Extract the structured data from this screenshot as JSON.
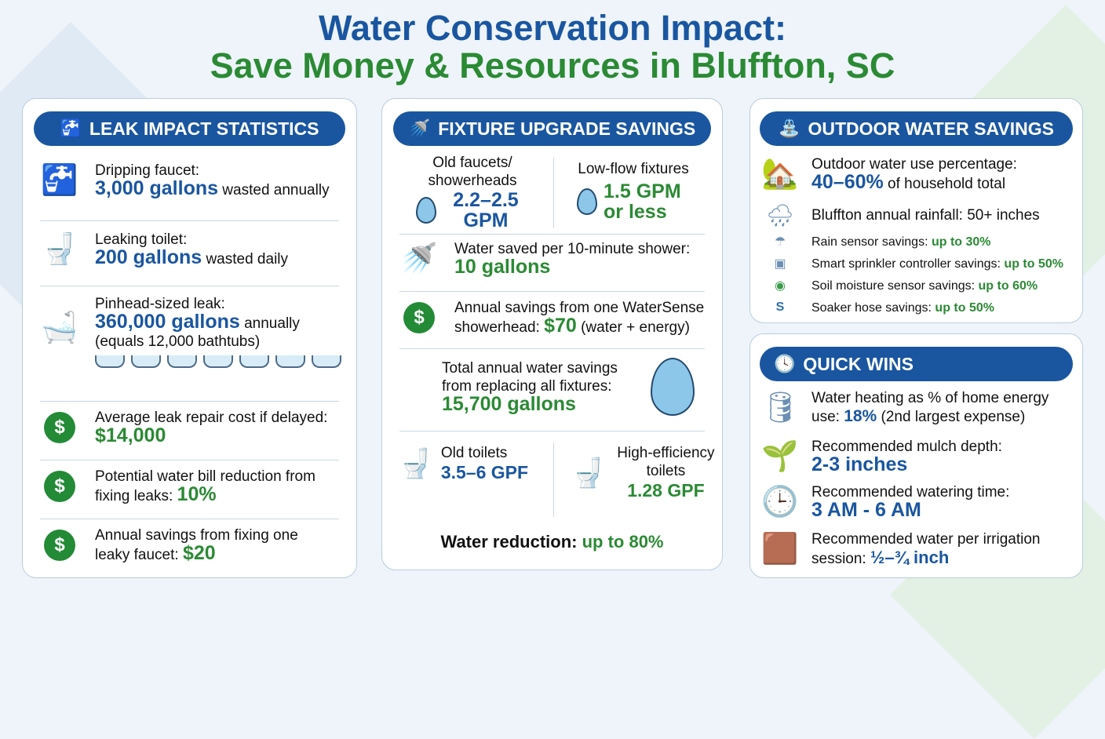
{
  "title": {
    "line1": "Water Conservation Impact:",
    "line2": "Save Money & Resources in Bluffton, SC"
  },
  "colors": {
    "blue": "#1a56a0",
    "green": "#2b8a34"
  },
  "leak": {
    "header": "LEAK IMPACT STATISTICS",
    "icon": "faucet-icon",
    "items": [
      {
        "label": "Dripping faucet:",
        "value": "3,000 gallons",
        "suffix": " wasted annually",
        "icon": "faucet-icon"
      },
      {
        "label": "Leaking toilet:",
        "value": "200 gallons",
        "suffix": " wasted daily",
        "icon": "toilet-icon"
      },
      {
        "label": "Pinhead-sized leak:",
        "value": "360,000 gallons",
        "suffix": " annually",
        "note": "(equals 12,000 bathtubs)",
        "icon": "bathtub-icon"
      },
      {
        "label": "Average leak repair cost if delayed:",
        "value": "$14,000",
        "icon": "dollar-icon"
      },
      {
        "label": "Potential water bill reduction from fixing leaks: ",
        "value": "10%",
        "icon": "dollar-icon"
      },
      {
        "label": "Annual savings from fixing one leaky faucet: ",
        "value": "$20",
        "icon": "dollar-icon"
      }
    ]
  },
  "fixture": {
    "header": "FIXTURE UPGRADE SAVINGS",
    "icon": "shower-icon",
    "old": {
      "label": "Old faucets/ showerheads",
      "value": "2.2–2.5 GPM"
    },
    "low": {
      "label": "Low-flow fixtures",
      "value": "1.5 GPM or less"
    },
    "shower": {
      "label": "Water saved per 10-minute shower:",
      "value": "10 gallons"
    },
    "annual": {
      "label": "Annual savings from one WaterSense showerhead: ",
      "value": "$70",
      "suffix": " (water + energy)"
    },
    "total": {
      "label": "Total annual water savings from replacing all fixtures:",
      "value": "15,700 gallons"
    },
    "old_toilet": {
      "label": "Old toilets",
      "value": "3.5–6 GPF"
    },
    "he_toilet": {
      "label": "High-efficiency toilets",
      "value": "1.28 GPF"
    },
    "reduction": {
      "label": "Water reduction: ",
      "value": "up to 80%"
    }
  },
  "outdoor": {
    "header": "OUTDOOR WATER SAVINGS",
    "icon": "sprinkler-icon",
    "use": {
      "label": "Outdoor water use percentage:",
      "value": "40–60%",
      "suffix": " of household total"
    },
    "rain": "Bluffton annual rainfall: 50+ inches",
    "items": [
      {
        "label": "Rain sensor savings: ",
        "value": "up to 30%",
        "icon": "rain-cloud-icon"
      },
      {
        "label": "Smart sprinkler controller savings: ",
        "value": "up to 50%",
        "icon": "controller-icon"
      },
      {
        "label": "Soil moisture sensor savings: ",
        "value": "up to 60%",
        "icon": "sensor-icon"
      },
      {
        "label": "Soaker hose savings: ",
        "value": "up to 50%",
        "icon": "hose-icon"
      }
    ]
  },
  "quick": {
    "header": "QUICK WINS",
    "icon": "clock-icon",
    "items": [
      {
        "label": "Water heating as % of home energy use: ",
        "value": "18%",
        "suffix": " (2nd largest expense)",
        "icon": "water-heater-icon"
      },
      {
        "label": "Recommended mulch depth:",
        "value": "2-3 inches",
        "icon": "mulch-icon"
      },
      {
        "label": "Recommended watering time:",
        "value": "3 AM - 6 AM",
        "icon": "clock-moon-icon"
      },
      {
        "label": "Recommended water per irrigation session: ",
        "value": "½–¾ inch",
        "icon": "irrigation-icon"
      }
    ]
  }
}
